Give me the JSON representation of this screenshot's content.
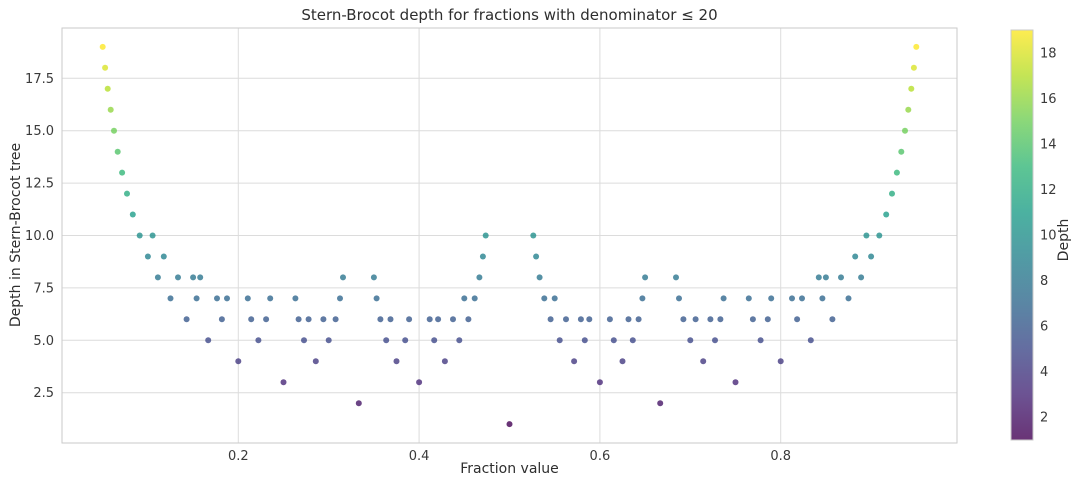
{
  "chart_data": {
    "type": "scatter",
    "title": "Stern-Brocot depth for fractions with denominator ≤ 20",
    "xlabel": "Fraction value",
    "ylabel": "Depth in Stern-Brocot tree",
    "xlim": [
      0.005,
      0.995
    ],
    "ylim": [
      0.1,
      19.9
    ],
    "grid": true,
    "xticks": {
      "values": [
        0.2,
        0.4,
        0.6,
        0.8
      ],
      "labels": [
        "0.2",
        "0.4",
        "0.6",
        "0.8"
      ]
    },
    "yticks": {
      "values": [
        2.5,
        5.0,
        7.5,
        10.0,
        12.5,
        15.0,
        17.5
      ],
      "labels": [
        "2.5",
        "5.0",
        "7.5",
        "10.0",
        "12.5",
        "15.0",
        "17.5"
      ]
    },
    "marker": {
      "shape": "circle",
      "radius": 3,
      "opacity": 0.8
    },
    "colorbar": {
      "label": "Depth",
      "vmin": 1,
      "vmax": 19,
      "ticks": [
        2,
        4,
        6,
        8,
        10,
        12,
        14,
        16,
        18
      ],
      "tick_labels": [
        "2",
        "4",
        "6",
        "8",
        "10",
        "12",
        "14",
        "16",
        "18"
      ]
    },
    "colormap": {
      "name": "viridis",
      "stops": [
        "#440154",
        "#482878",
        "#3e4989",
        "#31688e",
        "#26828e",
        "#1f9e89",
        "#35b779",
        "#6ece58",
        "#b5de2b",
        "#fde725"
      ]
    },
    "points_format": "[numerator, denominator, depth]; x = numerator/denominator, y = depth, color = viridis(depth)",
    "points": [
      [
        1,
        2,
        1
      ],
      [
        1,
        3,
        2
      ],
      [
        2,
        3,
        2
      ],
      [
        1,
        4,
        3
      ],
      [
        3,
        4,
        3
      ],
      [
        1,
        5,
        4
      ],
      [
        2,
        5,
        3
      ],
      [
        3,
        5,
        3
      ],
      [
        4,
        5,
        4
      ],
      [
        1,
        6,
        5
      ],
      [
        5,
        6,
        5
      ],
      [
        1,
        7,
        6
      ],
      [
        2,
        7,
        4
      ],
      [
        3,
        7,
        4
      ],
      [
        4,
        7,
        4
      ],
      [
        5,
        7,
        4
      ],
      [
        6,
        7,
        6
      ],
      [
        1,
        8,
        7
      ],
      [
        3,
        8,
        4
      ],
      [
        5,
        8,
        4
      ],
      [
        7,
        8,
        7
      ],
      [
        1,
        9,
        8
      ],
      [
        2,
        9,
        5
      ],
      [
        4,
        9,
        5
      ],
      [
        5,
        9,
        5
      ],
      [
        7,
        9,
        5
      ],
      [
        8,
        9,
        8
      ],
      [
        1,
        10,
        9
      ],
      [
        3,
        10,
        5
      ],
      [
        7,
        10,
        5
      ],
      [
        9,
        10,
        9
      ],
      [
        1,
        11,
        10
      ],
      [
        2,
        11,
        6
      ],
      [
        3,
        11,
        5
      ],
      [
        4,
        11,
        5
      ],
      [
        5,
        11,
        6
      ],
      [
        6,
        11,
        6
      ],
      [
        7,
        11,
        5
      ],
      [
        8,
        11,
        5
      ],
      [
        9,
        11,
        6
      ],
      [
        10,
        11,
        10
      ],
      [
        1,
        12,
        11
      ],
      [
        5,
        12,
        5
      ],
      [
        7,
        12,
        5
      ],
      [
        11,
        12,
        11
      ],
      [
        1,
        13,
        12
      ],
      [
        2,
        13,
        7
      ],
      [
        3,
        13,
        6
      ],
      [
        4,
        13,
        6
      ],
      [
        5,
        13,
        5
      ],
      [
        6,
        13,
        7
      ],
      [
        7,
        13,
        7
      ],
      [
        8,
        13,
        5
      ],
      [
        9,
        13,
        6
      ],
      [
        10,
        13,
        6
      ],
      [
        11,
        13,
        7
      ],
      [
        12,
        13,
        12
      ],
      [
        1,
        14,
        13
      ],
      [
        3,
        14,
        6
      ],
      [
        5,
        14,
        6
      ],
      [
        9,
        14,
        6
      ],
      [
        11,
        14,
        6
      ],
      [
        13,
        14,
        13
      ],
      [
        1,
        15,
        14
      ],
      [
        2,
        15,
        8
      ],
      [
        4,
        15,
        6
      ],
      [
        7,
        15,
        8
      ],
      [
        8,
        15,
        8
      ],
      [
        11,
        15,
        6
      ],
      [
        13,
        15,
        8
      ],
      [
        14,
        15,
        14
      ],
      [
        1,
        16,
        15
      ],
      [
        3,
        16,
        7
      ],
      [
        5,
        16,
        7
      ],
      [
        7,
        16,
        6
      ],
      [
        9,
        16,
        6
      ],
      [
        11,
        16,
        7
      ],
      [
        13,
        16,
        7
      ],
      [
        15,
        16,
        15
      ],
      [
        1,
        17,
        16
      ],
      [
        2,
        17,
        9
      ],
      [
        3,
        17,
        7
      ],
      [
        4,
        17,
        7
      ],
      [
        5,
        17,
        6
      ],
      [
        6,
        17,
        7
      ],
      [
        7,
        17,
        6
      ],
      [
        8,
        17,
        9
      ],
      [
        9,
        17,
        9
      ],
      [
        10,
        17,
        6
      ],
      [
        11,
        17,
        7
      ],
      [
        12,
        17,
        6
      ],
      [
        13,
        17,
        7
      ],
      [
        14,
        17,
        7
      ],
      [
        15,
        17,
        9
      ],
      [
        16,
        17,
        16
      ],
      [
        1,
        18,
        17
      ],
      [
        5,
        18,
        6
      ],
      [
        7,
        18,
        6
      ],
      [
        11,
        18,
        6
      ],
      [
        13,
        18,
        6
      ],
      [
        17,
        18,
        17
      ],
      [
        1,
        19,
        18
      ],
      [
        2,
        19,
        10
      ],
      [
        3,
        19,
        8
      ],
      [
        4,
        19,
        7
      ],
      [
        5,
        19,
        7
      ],
      [
        6,
        19,
        8
      ],
      [
        7,
        19,
        6
      ],
      [
        8,
        19,
        6
      ],
      [
        9,
        19,
        10
      ],
      [
        10,
        19,
        10
      ],
      [
        11,
        19,
        6
      ],
      [
        12,
        19,
        6
      ],
      [
        13,
        19,
        8
      ],
      [
        14,
        19,
        7
      ],
      [
        15,
        19,
        7
      ],
      [
        16,
        19,
        8
      ],
      [
        17,
        19,
        10
      ],
      [
        18,
        19,
        18
      ],
      [
        1,
        20,
        19
      ],
      [
        3,
        20,
        8
      ],
      [
        7,
        20,
        8
      ],
      [
        9,
        20,
        7
      ],
      [
        11,
        20,
        7
      ],
      [
        13,
        20,
        8
      ],
      [
        17,
        20,
        8
      ],
      [
        19,
        20,
        19
      ]
    ]
  },
  "style": {
    "background": "#ffffff",
    "grid_color": "#dcdcdc",
    "spine_color": "#cacaca",
    "text_color": "#2e2e2e",
    "tick_text_color": "#3a3a3a"
  },
  "layout_note": "scatter plot with vertical viridis colorbar on the right"
}
